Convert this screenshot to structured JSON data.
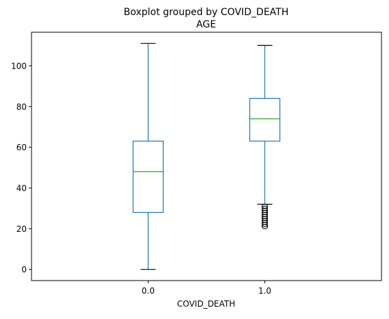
{
  "chart_data": {
    "type": "box",
    "title": "Boxplot grouped by COVID_DEATH",
    "subtitle": "AGE",
    "xlabel": "COVID_DEATH",
    "ylabel": "",
    "categories": [
      "0.0",
      "1.0"
    ],
    "yticks": [
      0,
      20,
      40,
      60,
      80,
      100
    ],
    "ylim": [
      -5.5,
      116.5
    ],
    "grid": false,
    "boxes": [
      {
        "category": "0.0",
        "whisker_low": 0,
        "q1": 28,
        "median": 48,
        "q3": 63,
        "whisker_high": 111,
        "outliers": []
      },
      {
        "category": "1.0",
        "whisker_low": 32,
        "q1": 63,
        "median": 74,
        "q3": 84,
        "whisker_high": 110,
        "outliers": [
          31,
          30,
          29,
          28,
          27,
          26,
          25,
          24,
          23,
          22,
          21
        ]
      }
    ],
    "colors": {
      "box": "#1f77b4",
      "median": "#2ca02c",
      "outlier": "#000000",
      "axes": "#000000"
    }
  }
}
